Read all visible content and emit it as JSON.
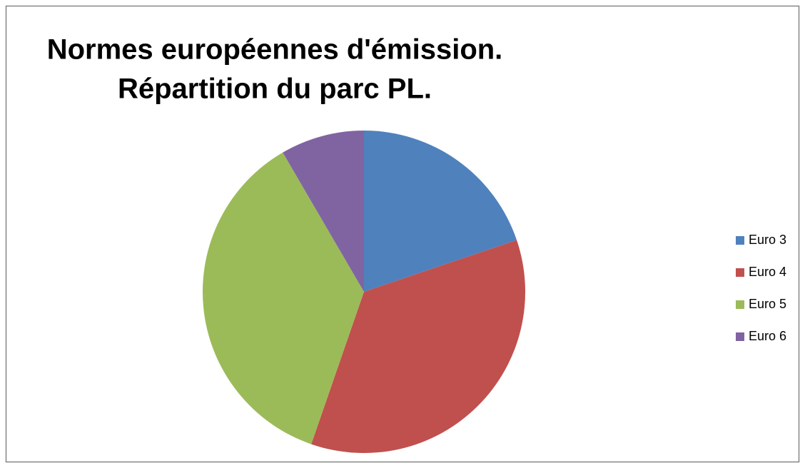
{
  "chart_data": {
    "type": "pie",
    "title": [
      "Normes européennes d'émission.",
      "Répartition du parc PL."
    ],
    "categories": [
      "Euro 3",
      "Euro 4",
      "Euro 5",
      "Euro 6"
    ],
    "values": [
      19.8,
      35.5,
      36.3,
      8.4
    ],
    "colors": [
      "#4f81bd",
      "#c0504d",
      "#9bbb59",
      "#8064a2"
    ],
    "legend": "right"
  }
}
